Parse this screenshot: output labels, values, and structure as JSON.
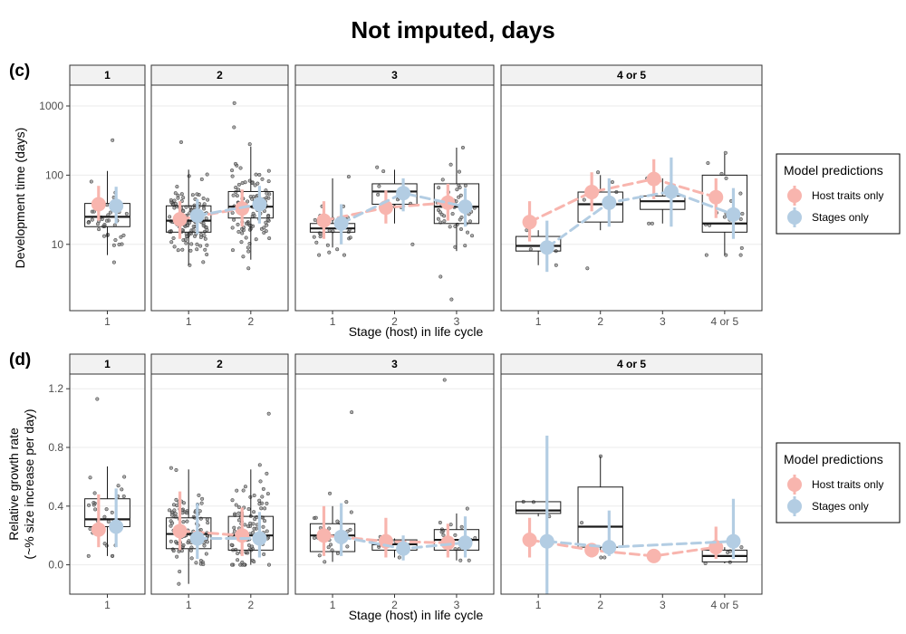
{
  "title": "Not imputed, days",
  "colors": {
    "host_traits": "#f8b5ae",
    "stages": "#b3cde3",
    "points": "#555555",
    "box": "#1a1a1a",
    "strip_bg": "#f2f2f2",
    "grid": "#ebebeb"
  },
  "legend": {
    "title": "Model predictions",
    "items": [
      "Host traits only",
      "Stages only"
    ]
  },
  "chart_data": [
    {
      "panel": "(c)",
      "type": "box+point",
      "scale": "log10",
      "ylabel": "Development time (days)",
      "xlabel": "Stage (host) in life cycle",
      "ylim": [
        1.1,
        2000
      ],
      "yticks": [
        10,
        100,
        1000
      ],
      "ytick_labels": [
        "10",
        "100",
        "1000"
      ],
      "facets": [
        {
          "label": "1",
          "categories": [
            "1"
          ],
          "boxes": [
            {
              "q1": 18,
              "median": 25,
              "q3": 39,
              "lo": 7,
              "hi": 115
            }
          ],
          "host": [
            {
              "y": 38,
              "lo": 22,
              "hi": 70
            }
          ],
          "stage": [
            {
              "y": 36,
              "lo": 20,
              "hi": 68
            }
          ],
          "jitter": [
            {
              "n": 40,
              "mu": 1.4,
              "sd": 0.25,
              "min": 5.5,
              "max": 320
            }
          ]
        },
        {
          "label": "2",
          "categories": [
            "1",
            "2"
          ],
          "boxes": [
            {
              "q1": 15,
              "median": 22,
              "q3": 36,
              "lo": 5,
              "hi": 120
            },
            {
              "q1": 24,
              "median": 35,
              "q3": 58,
              "lo": 6,
              "hi": 260
            }
          ],
          "host": [
            {
              "y": 23,
              "lo": 12,
              "hi": 42
            },
            {
              "y": 33,
              "lo": 18,
              "hi": 62
            }
          ],
          "stage": [
            {
              "y": 26,
              "lo": 14,
              "hi": 45
            },
            {
              "y": 38,
              "lo": 20,
              "hi": 70
            }
          ],
          "jitter": [
            {
              "n": 130,
              "mu": 1.35,
              "sd": 0.25,
              "min": 5,
              "max": 300
            },
            {
              "n": 110,
              "mu": 1.55,
              "sd": 0.3,
              "min": 4.5,
              "max": 1100
            }
          ]
        },
        {
          "label": "3",
          "categories": [
            "1",
            "2",
            "3"
          ],
          "boxes": [
            {
              "q1": 15,
              "median": 17,
              "q3": 20,
              "lo": 9,
              "hi": 90
            },
            {
              "q1": 38,
              "median": 58,
              "q3": 75,
              "lo": 20,
              "hi": 120
            },
            {
              "q1": 20,
              "median": 35,
              "q3": 75,
              "lo": 8,
              "hi": 250
            }
          ],
          "host": [
            {
              "y": 22,
              "lo": 12,
              "hi": 42
            },
            {
              "y": 34,
              "lo": 20,
              "hi": 60
            },
            {
              "y": 40,
              "lo": 22,
              "hi": 75
            }
          ],
          "stage": [
            {
              "y": 20,
              "lo": 10,
              "hi": 38
            },
            {
              "y": 55,
              "lo": 30,
              "hi": 90
            },
            {
              "y": 35,
              "lo": 18,
              "hi": 65
            }
          ],
          "jitter": [
            {
              "n": 30,
              "mu": 1.25,
              "sd": 0.18,
              "min": 7,
              "max": 95
            },
            {
              "n": 12,
              "mu": 1.75,
              "sd": 0.15,
              "min": 10,
              "max": 130
            },
            {
              "n": 45,
              "mu": 1.55,
              "sd": 0.3,
              "min": 1.6,
              "max": 250
            }
          ]
        },
        {
          "label": "4 or 5",
          "categories": [
            "1",
            "2",
            "3",
            "4 or 5"
          ],
          "boxes": [
            {
              "q1": 8,
              "median": 9.5,
              "q3": 13,
              "lo": 5,
              "hi": 16
            },
            {
              "q1": 21,
              "median": 38,
              "q3": 57,
              "lo": 16,
              "hi": 100
            },
            {
              "q1": 32,
              "median": 42,
              "q3": 50,
              "lo": 20,
              "hi": 90
            },
            {
              "q1": 15,
              "median": 20,
              "q3": 100,
              "lo": 7,
              "hi": 200
            }
          ],
          "host": [
            {
              "y": 21,
              "lo": 11,
              "hi": 42
            },
            {
              "y": 57,
              "lo": 30,
              "hi": 110
            },
            {
              "y": 88,
              "lo": 45,
              "hi": 170
            },
            {
              "y": 48,
              "lo": 24,
              "hi": 90
            }
          ],
          "stage": [
            {
              "y": 9,
              "lo": 4,
              "hi": 22
            },
            {
              "y": 40,
              "lo": 18,
              "hi": 90
            },
            {
              "y": 58,
              "lo": 18,
              "hi": 180
            },
            {
              "y": 27,
              "lo": 12,
              "hi": 65
            }
          ],
          "jitter": [
            {
              "n": 4,
              "mu": 1.0,
              "sd": 0.1,
              "min": 5,
              "max": 16
            },
            {
              "n": 5,
              "mu": 1.5,
              "sd": 0.3,
              "min": 4.5,
              "max": 110
            },
            {
              "n": 3,
              "mu": 1.6,
              "sd": 0.15,
              "min": 20,
              "max": 90
            },
            {
              "n": 18,
              "mu": 1.45,
              "sd": 0.35,
              "min": 7,
              "max": 210
            }
          ]
        }
      ]
    },
    {
      "panel": "(d)",
      "type": "box+point",
      "scale": "linear",
      "ylabel": "Relative growth rate\n(~% size increase per day)",
      "xlabel": "Stage (host) in life cycle",
      "ylim": [
        -0.2,
        1.3
      ],
      "yticks": [
        0.0,
        0.4,
        0.8,
        1.2
      ],
      "ytick_labels": [
        "0.0",
        "0.4",
        "0.8",
        "1.2"
      ],
      "facets": [
        {
          "label": "1",
          "categories": [
            "1"
          ],
          "boxes": [
            {
              "q1": 0.26,
              "median": 0.31,
              "q3": 0.45,
              "lo": 0.06,
              "hi": 0.67
            }
          ],
          "host": [
            {
              "y": 0.24,
              "lo": 0.12,
              "hi": 0.48
            }
          ],
          "stage": [
            {
              "y": 0.26,
              "lo": 0.12,
              "hi": 0.52
            }
          ],
          "jitter": [
            {
              "n": 30,
              "mu": 0.33,
              "sd": 0.15,
              "min": 0.06,
              "max": 1.13
            }
          ]
        },
        {
          "label": "2",
          "categories": [
            "1",
            "2"
          ],
          "boxes": [
            {
              "q1": 0.11,
              "median": 0.21,
              "q3": 0.32,
              "lo": -0.13,
              "hi": 0.65
            },
            {
              "q1": 0.1,
              "median": 0.2,
              "q3": 0.33,
              "lo": 0.0,
              "hi": 0.65
            }
          ],
          "host": [
            {
              "y": 0.23,
              "lo": 0.1,
              "hi": 0.5
            },
            {
              "y": 0.2,
              "lo": 0.06,
              "hi": 0.39
            }
          ],
          "stage": [
            {
              "y": 0.18,
              "lo": 0.04,
              "hi": 0.42
            },
            {
              "y": 0.18,
              "lo": 0.05,
              "hi": 0.36
            }
          ],
          "jitter": [
            {
              "n": 110,
              "mu": 0.22,
              "sd": 0.13,
              "min": -0.13,
              "max": 0.66
            },
            {
              "n": 100,
              "mu": 0.24,
              "sd": 0.18,
              "min": 0.0,
              "max": 1.03
            }
          ]
        },
        {
          "label": "3",
          "categories": [
            "1",
            "2",
            "3"
          ],
          "boxes": [
            {
              "q1": 0.09,
              "median": 0.2,
              "q3": 0.28,
              "lo": 0.02,
              "hi": 0.4
            },
            {
              "q1": 0.1,
              "median": 0.14,
              "q3": 0.17,
              "lo": 0.05,
              "hi": 0.18
            },
            {
              "q1": 0.1,
              "median": 0.17,
              "q3": 0.24,
              "lo": 0.03,
              "hi": 0.35
            }
          ],
          "host": [
            {
              "y": 0.2,
              "lo": 0.06,
              "hi": 0.4
            },
            {
              "y": 0.16,
              "lo": 0.05,
              "hi": 0.32
            },
            {
              "y": 0.15,
              "lo": 0.05,
              "hi": 0.28
            }
          ],
          "stage": [
            {
              "y": 0.19,
              "lo": 0.06,
              "hi": 0.42
            },
            {
              "y": 0.11,
              "lo": 0.03,
              "hi": 0.2
            },
            {
              "y": 0.15,
              "lo": 0.05,
              "hi": 0.33
            }
          ],
          "jitter": [
            {
              "n": 25,
              "mu": 0.2,
              "sd": 0.12,
              "min": 0.02,
              "max": 1.04
            },
            {
              "n": 6,
              "mu": 0.14,
              "sd": 0.04,
              "min": 0.05,
              "max": 0.19
            },
            {
              "n": 20,
              "mu": 0.17,
              "sd": 0.08,
              "min": 0.03,
              "max": 1.26
            }
          ]
        },
        {
          "label": "4 or 5",
          "categories": [
            "1",
            "2",
            "3",
            "4 or 5"
          ],
          "boxes": [
            {
              "q1": 0.35,
              "median": 0.37,
              "q3": 0.43,
              "lo": 0.33,
              "hi": 0.43
            },
            {
              "q1": 0.12,
              "median": 0.26,
              "q3": 0.53,
              "lo": 0.1,
              "hi": 0.74
            },
            null,
            {
              "q1": 0.02,
              "median": 0.06,
              "q3": 0.1,
              "lo": 0.01,
              "hi": 0.12
            }
          ],
          "host": [
            {
              "y": 0.17,
              "lo": 0.05,
              "hi": 0.32
            },
            {
              "y": 0.1,
              "lo": 0.05,
              "hi": 0.14
            },
            {
              "y": 0.06,
              "lo": 0.04,
              "hi": 0.1
            },
            {
              "y": 0.12,
              "lo": 0.04,
              "hi": 0.26
            }
          ],
          "stage": [
            {
              "y": 0.16,
              "lo": -0.3,
              "hi": 0.88
            },
            {
              "y": 0.12,
              "lo": 0.06,
              "hi": 0.37
            },
            null,
            {
              "y": 0.16,
              "lo": 0.04,
              "hi": 0.45
            }
          ],
          "jitter": [
            {
              "n": 3,
              "mu": 0.38,
              "sd": 0.03,
              "min": 0.33,
              "max": 0.43
            },
            {
              "n": 4,
              "mu": 0.3,
              "sd": 0.2,
              "min": 0.05,
              "max": 0.74
            },
            {
              "n": 0,
              "mu": 0,
              "sd": 0,
              "min": 0,
              "max": 0
            },
            {
              "n": 5,
              "mu": 0.06,
              "sd": 0.04,
              "min": 0.01,
              "max": 0.12
            }
          ]
        }
      ]
    }
  ]
}
